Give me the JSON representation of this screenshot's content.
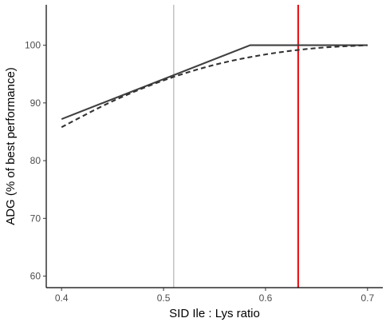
{
  "chart_data": {
    "type": "line",
    "xlabel": "SID Ile : Lys ratio",
    "ylabel": "ADG (% of best performance)",
    "xlim": [
      0.385,
      0.715
    ],
    "ylim": [
      58,
      107
    ],
    "x_ticks": [
      0.4,
      0.5,
      0.6,
      0.7
    ],
    "x_tick_labels": [
      "0.4",
      "0.5",
      "0.6",
      "0.7"
    ],
    "y_ticks": [
      60,
      70,
      80,
      90,
      100
    ],
    "y_tick_labels": [
      "60",
      "70",
      "80",
      "90",
      "100"
    ],
    "grid": false,
    "series": [
      {
        "style": "solid",
        "color": "#404040",
        "x": [
          0.4,
          0.585,
          0.7
        ],
        "y": [
          87.2,
          100.0,
          100.0
        ]
      },
      {
        "style": "dashed",
        "color": "#333333",
        "x": [
          0.4,
          0.45,
          0.5,
          0.55,
          0.6,
          0.65,
          0.7
        ],
        "y": [
          85.8,
          90.3,
          93.9,
          96.6,
          98.4,
          99.5,
          100.0
        ]
      }
    ],
    "reference_lines": [
      {
        "x": 0.51,
        "color": "#999999"
      },
      {
        "x": 0.632,
        "color": "#e8141a"
      }
    ]
  }
}
